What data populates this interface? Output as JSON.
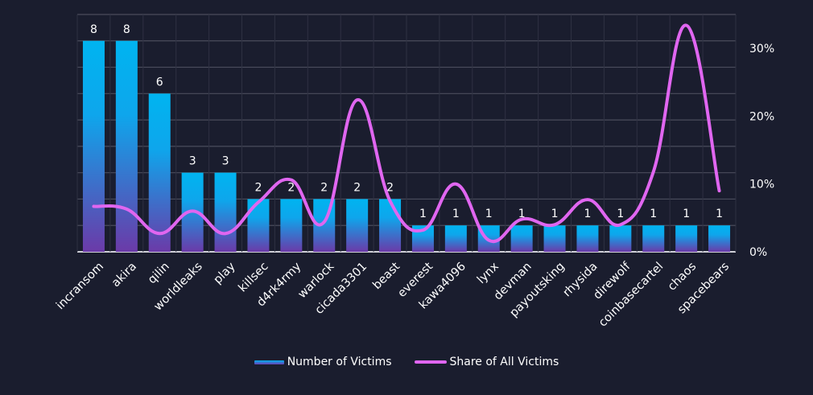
{
  "chart_data": {
    "type": "bar+line",
    "title": "",
    "categories": [
      "incransom",
      "akira",
      "qilin",
      "worldleaks",
      "play",
      "killsec",
      "d4rk4rmy",
      "warlock",
      "cicada3301",
      "beast",
      "everest",
      "kawa4096",
      "lynx",
      "devman",
      "payoutsking",
      "rhysida",
      "direwolf",
      "coinbasecartel",
      "chaos",
      "spacebears"
    ],
    "series": [
      {
        "name": "Number of Victims",
        "type": "bar",
        "axis": "left",
        "values": [
          8,
          8,
          6,
          3,
          3,
          2,
          2,
          2,
          2,
          2,
          1,
          1,
          1,
          1,
          1,
          1,
          1,
          1,
          1,
          1
        ],
        "data_labels": true,
        "color_top": "#00b4f0",
        "color_bottom": "#6b3aa8"
      },
      {
        "name": "Share of All Victims",
        "type": "line",
        "axis": "right",
        "smooth": true,
        "values": [
          6.7,
          6.3,
          2.7,
          6.0,
          2.7,
          7.3,
          10.6,
          4.4,
          22.4,
          7.5,
          3.2,
          10.0,
          1.7,
          4.8,
          4.0,
          7.7,
          4.0,
          11.8,
          33.4,
          9.0
        ],
        "unit": "%",
        "color": "#e066f0"
      }
    ],
    "y_left": {
      "range": [
        0,
        9
      ],
      "ticks_shown": false
    },
    "y_right": {
      "range": [
        0,
        35
      ],
      "ticks": [
        0,
        10,
        20,
        30
      ],
      "tick_labels": [
        "0%",
        "10%",
        "20%",
        "30%"
      ]
    },
    "grid": true,
    "xlabel": "",
    "ylabel": "",
    "legend": {
      "position": "bottom",
      "entries": [
        "Number of Victims",
        "Share of All Victims"
      ]
    },
    "colors": {
      "background": "#1a1d2e",
      "grid": "#4a4d5c",
      "text": "#ffffff"
    }
  }
}
